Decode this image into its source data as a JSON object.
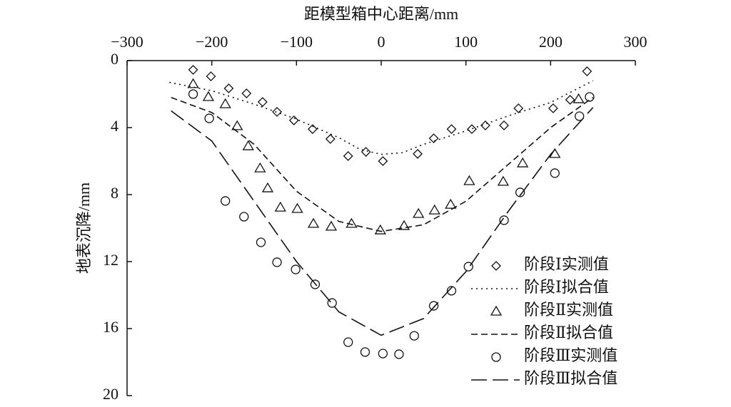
{
  "chart_data": {
    "type": "line",
    "x_label": "距模型箱中心距离/mm",
    "y_label": "地表沉降/mm",
    "xlim": [
      -300,
      300
    ],
    "xticks": [
      {
        "value": -300,
        "label": "−300"
      },
      {
        "value": -200,
        "label": "−200"
      },
      {
        "value": -100,
        "label": "−100"
      },
      0,
      100,
      200,
      300
    ],
    "ylim": [
      0,
      20
    ],
    "yticks": [
      0,
      4,
      8,
      12,
      16,
      20
    ],
    "y_inverted": true,
    "x_axis_position": "top",
    "legend": "lower right",
    "series": [
      {
        "name": "阶段Ⅰ实测值",
        "color": "#111111",
        "marker": "diamond",
        "x": [
          -222,
          -201,
          -180,
          -159,
          -140,
          -123,
          -103,
          -81,
          -60,
          -39,
          -18,
          2,
          43,
          62,
          83,
          107,
          123,
          145,
          162,
          203,
          223,
          243
        ],
        "values": [
          0.55,
          0.94,
          1.66,
          1.96,
          2.47,
          3.06,
          3.57,
          4.09,
          4.68,
          5.7,
          5.45,
          6.0,
          5.57,
          4.64,
          4.09,
          4.09,
          3.87,
          3.87,
          2.85,
          2.85,
          2.34,
          0.64
        ]
      },
      {
        "name": "阶段Ⅰ拟合值",
        "color": "#111111",
        "linestyle": "dotted",
        "x": [
          -250,
          -200,
          -150,
          -100,
          -50,
          -25,
          0,
          25,
          50,
          100,
          150,
          200,
          250
        ],
        "values": [
          1.3,
          1.8,
          2.6,
          3.5,
          4.6,
          5.3,
          5.6,
          5.5,
          5.0,
          4.2,
          3.3,
          2.5,
          1.2
        ]
      },
      {
        "name": "阶段Ⅱ实测值",
        "color": "#111111",
        "marker": "triangle",
        "x": [
          -222,
          -204,
          -184,
          -170,
          -157,
          -143,
          -134,
          -119,
          -99,
          -80,
          -59,
          -35,
          -1,
          27,
          44,
          63,
          82,
          104,
          144,
          167,
          205,
          233
        ],
        "values": [
          1.4,
          2.17,
          2.6,
          3.91,
          5.11,
          6.43,
          7.62,
          8.77,
          8.85,
          9.74,
          9.91,
          9.74,
          10.13,
          9.87,
          9.15,
          8.94,
          8.6,
          7.19,
          7.23,
          6.13,
          5.57,
          2.3
        ]
      },
      {
        "name": "阶段Ⅱ拟合值",
        "color": "#111111",
        "linestyle": "dashed",
        "x": [
          -248,
          -200,
          -150,
          -100,
          -50,
          0,
          50,
          100,
          150,
          200,
          250
        ],
        "values": [
          2.2,
          3.1,
          5.0,
          7.8,
          9.6,
          10.2,
          9.8,
          8.4,
          6.2,
          4.0,
          2.2
        ]
      },
      {
        "name": "阶段Ⅲ实测值",
        "color": "#111111",
        "marker": "circle",
        "x": [
          -222,
          -203,
          -184,
          -162,
          -142,
          -123,
          -101,
          -78,
          -58,
          -39,
          -19,
          2,
          21,
          39,
          62,
          83,
          103,
          145,
          164,
          205,
          234,
          246
        ],
        "values": [
          2.0,
          3.45,
          8.38,
          9.32,
          10.85,
          12.04,
          12.47,
          13.36,
          14.47,
          16.81,
          17.4,
          17.49,
          17.53,
          16.43,
          14.64,
          13.74,
          12.3,
          9.53,
          7.87,
          6.72,
          3.32,
          2.17
        ]
      },
      {
        "name": "阶段Ⅲ拟合值",
        "color": "#111111",
        "linestyle": "longdash",
        "x": [
          -248,
          -200,
          -150,
          -100,
          -50,
          0,
          50,
          100,
          150,
          200,
          250
        ],
        "values": [
          3.0,
          4.8,
          8.4,
          12.0,
          15.0,
          16.4,
          15.4,
          12.6,
          9.0,
          5.6,
          2.8
        ]
      }
    ]
  }
}
